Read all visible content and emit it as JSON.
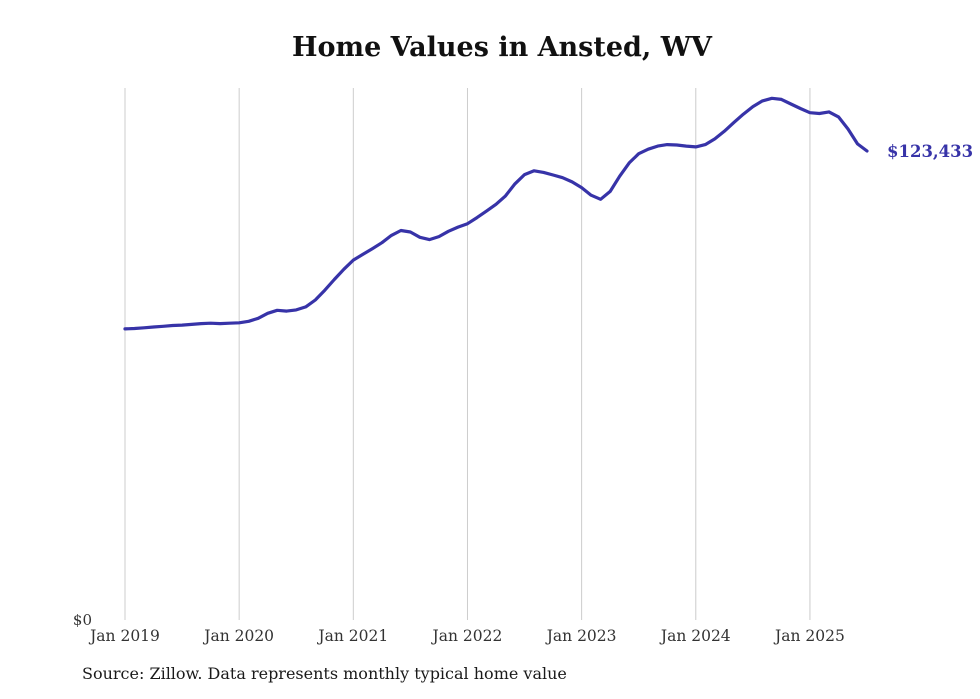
{
  "chart_data": {
    "type": "line",
    "title": "Home Values in Ansted, WV",
    "source_note": "Source: Zillow. Data represents monthly typical home value",
    "end_label": "$123,433",
    "line_color": "#3733a8",
    "gridline_color": "#cccccc",
    "grid": "vertical-only",
    "legend_position": "none",
    "x_tick_labels": [
      "Jan 2019",
      "Jan 2020",
      "Jan 2021",
      "Jan 2022",
      "Jan 2023",
      "Jan 2024",
      "Jan 2025"
    ],
    "y_tick_labels": [
      "$0"
    ],
    "ylim": [
      0,
      140000
    ],
    "x_range": {
      "start": "2019-01",
      "end": "2025-07",
      "step": "1 month"
    },
    "series": [
      {
        "name": "Monthly typical home value",
        "values": [
          76600,
          76700,
          76900,
          77100,
          77300,
          77500,
          77600,
          77800,
          78000,
          78100,
          78000,
          78100,
          78200,
          78600,
          79400,
          80700,
          81500,
          81300,
          81600,
          82400,
          84200,
          86800,
          89600,
          92300,
          94700,
          96200,
          97700,
          99300,
          101200,
          102500,
          102100,
          100700,
          100100,
          100900,
          102300,
          103400,
          104300,
          105900,
          107600,
          109400,
          111600,
          114800,
          117200,
          118200,
          117800,
          117100,
          116400,
          115300,
          113800,
          111800,
          110700,
          112800,
          116800,
          120300,
          122700,
          123900,
          124700,
          125100,
          125000,
          124700,
          124500,
          125100,
          126600,
          128600,
          130900,
          133100,
          135100,
          136600,
          137300,
          137000,
          135800,
          134600,
          133500,
          133300,
          133700,
          132400,
          129200,
          125300,
          123433
        ]
      }
    ]
  }
}
